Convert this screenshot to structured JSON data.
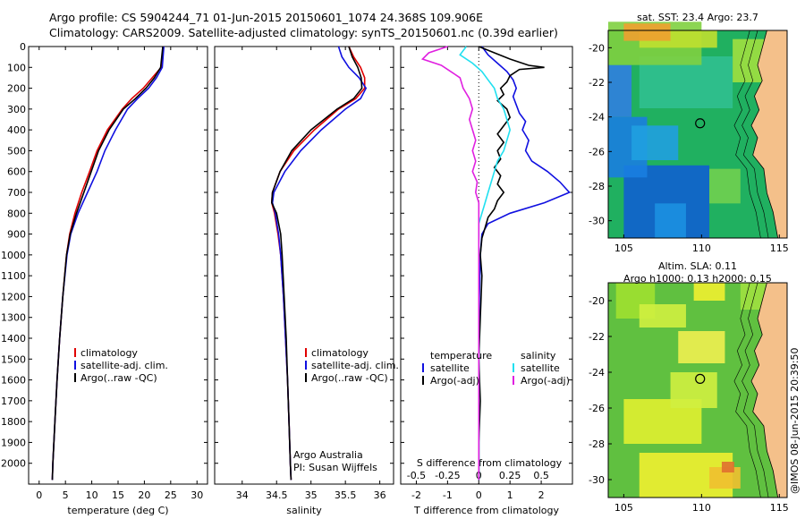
{
  "header": {
    "line1": "Argo profile: CS 5904244_71 01-Jun-2015 20150601_1074 24.368S 109.906E",
    "line2": "Climatology: CARS2009. Satellite-adjusted climatology: synTS_20150601.nc (0.39d earlier)"
  },
  "colors": {
    "climatology": "#e00000",
    "satellite": "#1010e0",
    "argo": "#000000",
    "sat_salinity": "#20e0f0",
    "argo_salinity": "#e020e0"
  },
  "chart_data": [
    {
      "id": "temperature",
      "type": "line",
      "xlabel": "temperature (deg C)",
      "xlim": [
        -2,
        32
      ],
      "xticks": [
        0,
        5,
        10,
        15,
        20,
        25,
        30
      ],
      "ylim": [
        2100,
        0
      ],
      "yticks": [
        0,
        100,
        200,
        300,
        400,
        500,
        600,
        700,
        800,
        900,
        1000,
        1100,
        1200,
        1300,
        1400,
        1500,
        1600,
        1700,
        1800,
        1900,
        2000
      ],
      "legend": [
        "climatology",
        "satellite-adj. clim.",
        "Argo(..raw -QC)"
      ],
      "series": [
        {
          "name": "climatology",
          "color": "climatology",
          "depth": [
            0,
            100,
            150,
            200,
            250,
            300,
            400,
            500,
            600,
            700,
            800,
            900,
            1000,
            1200,
            1400,
            1600,
            1800,
            2000,
            2080
          ],
          "values": [
            23.6,
            23.2,
            21.5,
            19.8,
            17.6,
            15.8,
            13.0,
            11.0,
            9.6,
            8.1,
            6.8,
            5.8,
            5.2,
            4.5,
            3.9,
            3.4,
            3.0,
            2.6,
            2.5
          ]
        },
        {
          "name": "satellite-adj. clim.",
          "color": "satellite",
          "depth": [
            0,
            100,
            150,
            200,
            250,
            300,
            400,
            500,
            600,
            700,
            800,
            900,
            1000,
            1200,
            1400,
            1600,
            1800,
            2000,
            2080
          ],
          "values": [
            23.7,
            23.4,
            22.3,
            20.8,
            18.7,
            16.8,
            14.5,
            12.5,
            11.0,
            9.2,
            7.4,
            6.0,
            5.3,
            4.5,
            3.9,
            3.4,
            3.0,
            2.6,
            2.5
          ]
        },
        {
          "name": "Argo(..raw -QC)",
          "color": "argo",
          "depth": [
            0,
            100,
            150,
            200,
            250,
            300,
            400,
            500,
            600,
            700,
            800,
            900,
            1000,
            1200,
            1400,
            1600,
            1800,
            2000,
            2080
          ],
          "values": [
            23.5,
            23.1,
            21.9,
            20.3,
            18.3,
            16.0,
            13.3,
            11.3,
            9.9,
            8.5,
            7.1,
            5.9,
            5.2,
            4.5,
            3.9,
            3.4,
            3.0,
            2.6,
            2.5
          ]
        }
      ]
    },
    {
      "id": "salinity",
      "type": "line",
      "xlabel": "salinity",
      "xlim": [
        33.6,
        36.2
      ],
      "xticks": [
        34,
        34.5,
        35,
        35.5,
        36
      ],
      "ylim": [
        2100,
        0
      ],
      "legend": [
        "climatology",
        "satellite-adj. clim.",
        "Argo(..raw -QC)"
      ],
      "annotation": [
        "Argo Australia",
        "PI: Susan Wijffels"
      ],
      "series": [
        {
          "name": "climatology",
          "color": "climatology",
          "depth": [
            0,
            50,
            100,
            150,
            200,
            250,
            300,
            400,
            500,
            600,
            700,
            750,
            800,
            900,
            1000,
            1200,
            1400,
            1600,
            1800,
            2000,
            2080
          ],
          "values": [
            35.55,
            35.62,
            35.72,
            35.78,
            35.78,
            35.65,
            35.4,
            35.05,
            34.75,
            34.55,
            34.44,
            34.43,
            34.47,
            34.52,
            34.56,
            34.6,
            34.63,
            34.66,
            34.68,
            34.7,
            34.71
          ]
        },
        {
          "name": "satellite-adj. clim.",
          "color": "satellite",
          "depth": [
            0,
            50,
            100,
            150,
            200,
            250,
            300,
            400,
            500,
            600,
            700,
            750,
            800,
            900,
            1000,
            1200,
            1400,
            1600,
            1800,
            2000,
            2080
          ],
          "values": [
            35.4,
            35.45,
            35.55,
            35.7,
            35.8,
            35.72,
            35.5,
            35.15,
            34.85,
            34.62,
            34.46,
            34.44,
            34.48,
            34.53,
            34.56,
            34.6,
            34.63,
            34.66,
            34.68,
            34.7,
            34.71
          ]
        },
        {
          "name": "Argo(..raw -QC)",
          "color": "argo",
          "depth": [
            0,
            50,
            100,
            150,
            200,
            250,
            300,
            400,
            500,
            600,
            700,
            750,
            800,
            900,
            1000,
            1200,
            1400,
            1600,
            1800,
            2000,
            2080
          ],
          "values": [
            35.55,
            35.6,
            35.68,
            35.73,
            35.74,
            35.62,
            35.38,
            35.0,
            34.72,
            34.55,
            34.44,
            34.43,
            34.5,
            34.56,
            34.58,
            34.61,
            34.64,
            34.66,
            34.68,
            34.7,
            34.71
          ]
        }
      ]
    },
    {
      "id": "difference",
      "type": "line",
      "xlabel": "T difference from climatology",
      "xlabel_top": "S difference from climatology",
      "xlim": [
        -2.5,
        3.0
      ],
      "xticks": [
        -2,
        -1,
        0,
        1,
        2
      ],
      "sticks_labels": [
        "-0.5",
        "-0.25",
        "0",
        "0.25",
        "0.5"
      ],
      "sticks_values": [
        -2,
        -1,
        0,
        1,
        2
      ],
      "ylim": [
        2100,
        0
      ],
      "legend_temperature_title": "temperature",
      "legend_salinity_title": "salinity",
      "legend_temperature": [
        "satellite",
        "Argo(-adj)"
      ],
      "legend_salinity": [
        "satellite",
        "Argo(-adj)"
      ],
      "series": [
        {
          "name": "T satellite",
          "color": "satellite",
          "depth": [
            0,
            40,
            80,
            120,
            160,
            200,
            240,
            280,
            320,
            360,
            400,
            450,
            500,
            550,
            600,
            650,
            700,
            750,
            800,
            850,
            900,
            1000,
            1200,
            1500,
            1800,
            2080
          ],
          "values": [
            0.1,
            0.3,
            0.6,
            0.9,
            1.1,
            1.2,
            1.1,
            1.2,
            1.3,
            1.5,
            1.4,
            1.6,
            1.5,
            1.7,
            2.2,
            2.6,
            2.9,
            2.1,
            1.0,
            0.3,
            0.1,
            0.05,
            0.02,
            0.0,
            0.0,
            0.0
          ]
        },
        {
          "name": "T Argo(-adj)",
          "color": "argo",
          "depth": [
            0,
            30,
            60,
            90,
            100,
            110,
            140,
            170,
            200,
            230,
            260,
            300,
            340,
            380,
            420,
            460,
            500,
            540,
            580,
            620,
            660,
            700,
            740,
            780,
            820,
            870,
            920,
            1000,
            1100,
            1300,
            1500,
            1700,
            1900,
            2080
          ],
          "values": [
            0.0,
            0.5,
            1.0,
            1.6,
            2.1,
            1.3,
            1.0,
            0.9,
            0.7,
            0.8,
            0.6,
            0.9,
            1.0,
            0.8,
            0.6,
            0.8,
            0.6,
            0.7,
            0.5,
            0.7,
            0.6,
            0.8,
            0.6,
            0.5,
            0.3,
            0.2,
            0.1,
            0.05,
            0.1,
            0.05,
            0.0,
            0.05,
            0.0,
            0.0
          ]
        },
        {
          "name": "S satellite",
          "color": "sat_salinity",
          "depth": [
            0,
            40,
            80,
            120,
            160,
            200,
            250,
            300,
            350,
            400,
            450,
            500,
            550,
            600,
            650,
            700,
            750,
            800,
            850,
            900,
            1000,
            1200,
            1500,
            1800,
            2080
          ],
          "values": [
            -0.4,
            -0.6,
            -0.2,
            0.1,
            0.3,
            0.5,
            0.6,
            0.8,
            0.9,
            1.0,
            0.9,
            0.8,
            0.6,
            0.5,
            0.4,
            0.3,
            0.2,
            0.1,
            0.0,
            0.0,
            0.0,
            0.0,
            0.0,
            0.0,
            0.0
          ]
        },
        {
          "name": "S Argo(-adj)",
          "color": "argo_salinity",
          "depth": [
            0,
            30,
            60,
            90,
            120,
            150,
            200,
            250,
            300,
            350,
            400,
            450,
            500,
            550,
            600,
            650,
            700,
            750,
            800,
            850,
            900,
            1000,
            1200,
            1500,
            1800,
            2080
          ],
          "values": [
            -1.0,
            -1.6,
            -1.8,
            -1.2,
            -0.9,
            -0.6,
            -0.5,
            -0.3,
            -0.2,
            -0.3,
            -0.2,
            -0.1,
            -0.2,
            -0.1,
            -0.2,
            -0.05,
            -0.1,
            0.0,
            0.0,
            0.0,
            0.0,
            0.0,
            0.0,
            0.0,
            0.0,
            0.0
          ]
        }
      ]
    },
    {
      "id": "sst-map",
      "type": "heatmap",
      "title": "sat. SST: 23.4  Argo: 23.7",
      "xticks": [
        105,
        110,
        115
      ],
      "yticks": [
        -20,
        -22,
        -24,
        -26,
        -28,
        -30
      ],
      "xlim": [
        104,
        115.5
      ],
      "ylim": [
        -31,
        -19
      ],
      "marker": {
        "lon": 109.906,
        "lat": -24.368
      }
    },
    {
      "id": "sla-map",
      "type": "heatmap",
      "title": "Altim. SLA: 0.11",
      "subtitle": "Argo h1000: 0.13 h2000: 0.15",
      "xticks": [
        105,
        110,
        115
      ],
      "yticks": [
        -20,
        -22,
        -24,
        -26,
        -28,
        -30
      ],
      "xlim": [
        104,
        115.5
      ],
      "ylim": [
        -31,
        -19
      ],
      "marker": {
        "lon": 109.906,
        "lat": -24.368
      }
    }
  ],
  "credit": "@IMOS 08-Jun-2015 20:39:50"
}
